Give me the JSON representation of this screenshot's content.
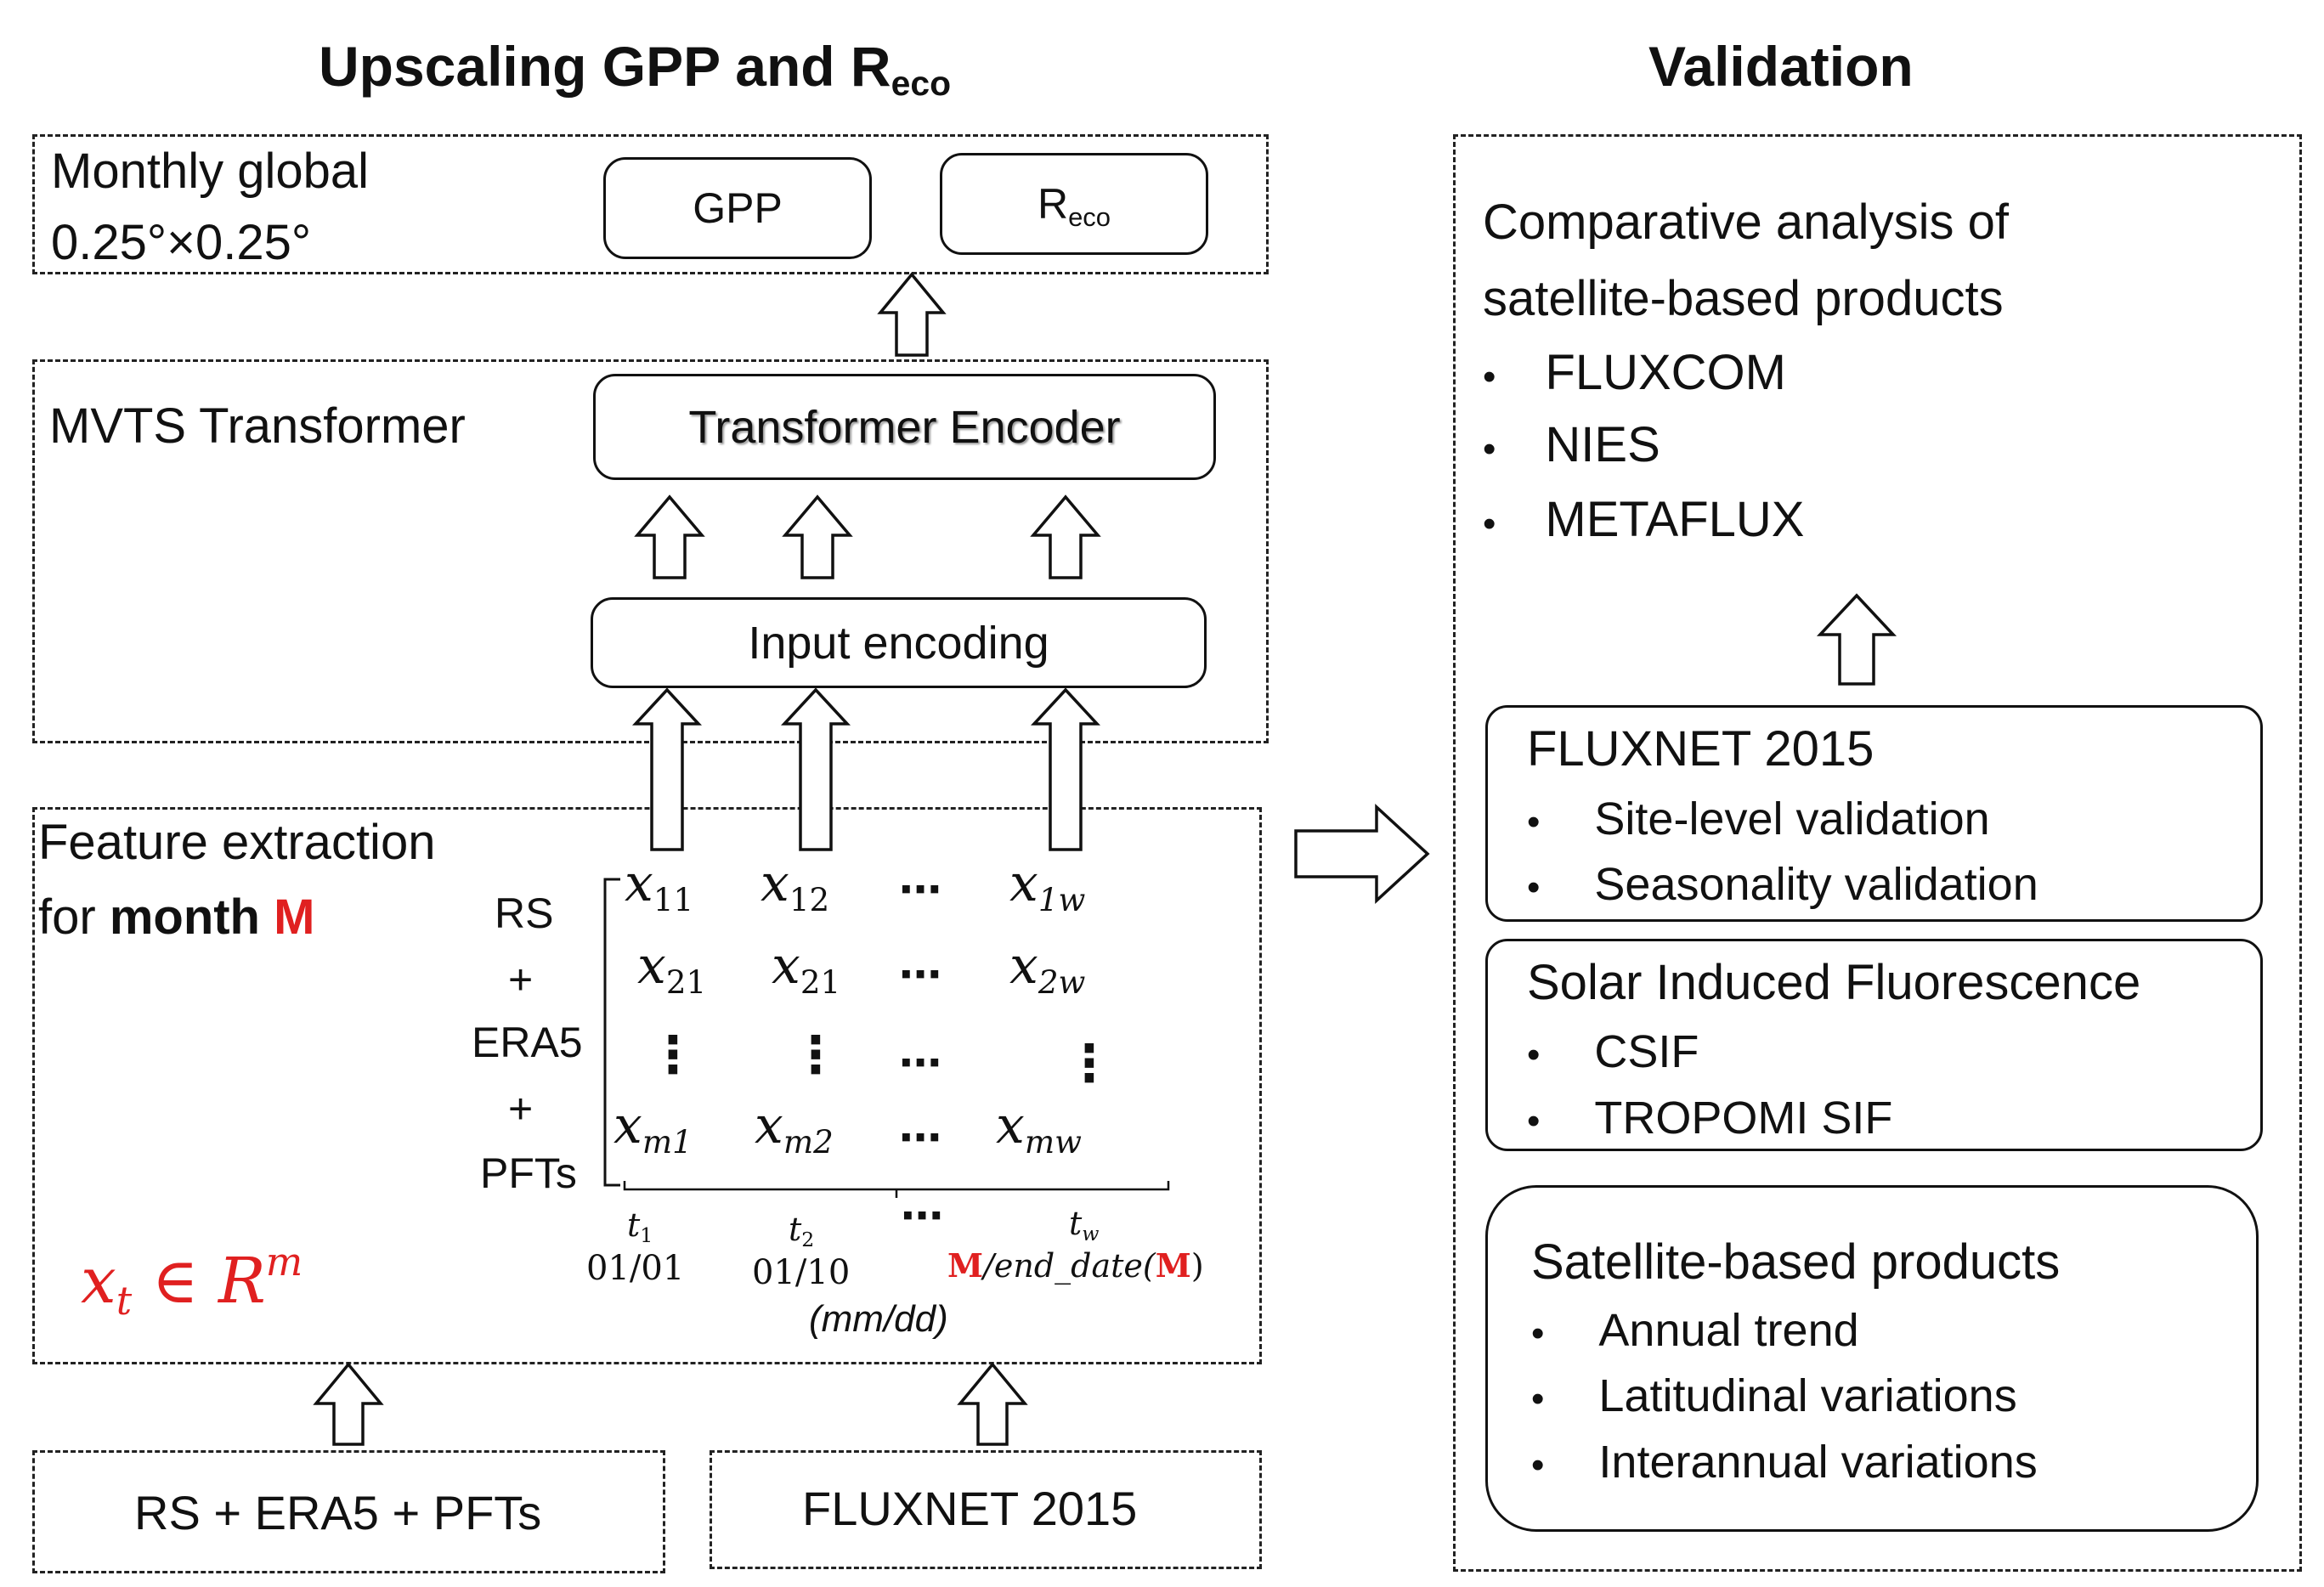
{
  "left_title": {
    "main": "Upscaling GPP and R",
    "sub": "eco"
  },
  "right_title": "Validation",
  "output_box": {
    "label_line1": "Monthly global",
    "label_line2": "0.25°×0.25°",
    "gpp": "GPP",
    "reco_main": "R",
    "reco_sub": "eco"
  },
  "mvts_box": {
    "label": "MVTS Transformer",
    "encoder": "Transformer Encoder",
    "input_encoding": "Input encoding"
  },
  "feature_box": {
    "label_line1": "Feature extraction",
    "label_line2_prefix": "for ",
    "label_line2_bold": "month ",
    "label_line2_red": "M",
    "row_labels": [
      "RS",
      "+",
      "ERA5",
      "+",
      "PFTs"
    ],
    "matrix": {
      "row1": [
        {
          "v": "x",
          "s": "11"
        },
        {
          "v": "x",
          "s": "12"
        },
        {
          "v": "x",
          "s": "1w"
        }
      ],
      "row2": [
        {
          "v": "x",
          "s": "21"
        },
        {
          "v": "x",
          "s": "21"
        },
        {
          "v": "x",
          "s": "2w"
        }
      ],
      "row3": [
        {
          "v": "x",
          "s": "m1"
        },
        {
          "v": "x",
          "s": "m2"
        },
        {
          "v": "x",
          "s": "mw"
        }
      ],
      "hdots": "⋯",
      "vdots": "⋮"
    },
    "time_labels": [
      {
        "t": "t",
        "s": "1",
        "date": "01/01"
      },
      {
        "t": "t",
        "s": "2",
        "date": "01/10"
      },
      {
        "t": "t",
        "s": "w",
        "date_red": "M",
        "date_mid": "/end_date(",
        "date_red2": "M",
        "date_end": ")"
      }
    ],
    "time_dots": "⋯",
    "mmdd": "(mm/dd)",
    "formula": {
      "x": "x",
      "sub": "t",
      "in": " ∈ ",
      "R": "R",
      "sup": "m"
    }
  },
  "inputs": {
    "left": "RS + ERA5 + PFTs",
    "right": "FLUXNET 2015"
  },
  "validation": {
    "comparative_line1": "Comparative analysis of",
    "comparative_line2": "satellite-based products",
    "comparative_items": [
      "FLUXCOM",
      "NIES",
      "METAFLUX"
    ],
    "fluxnet": {
      "title": "FLUXNET 2015",
      "items": [
        "Site-level validation",
        "Seasonality validation"
      ]
    },
    "sif": {
      "title": "Solar Induced Fluorescence",
      "items": [
        "CSIF",
        "TROPOMI SIF"
      ]
    },
    "satellite": {
      "title": "Satellite-based products",
      "items": [
        "Annual trend",
        "Latitudinal variations",
        "Interannual variations"
      ]
    },
    "bullet": "•"
  },
  "colors": {
    "accent_red": "#e02020",
    "line": "#111111"
  }
}
